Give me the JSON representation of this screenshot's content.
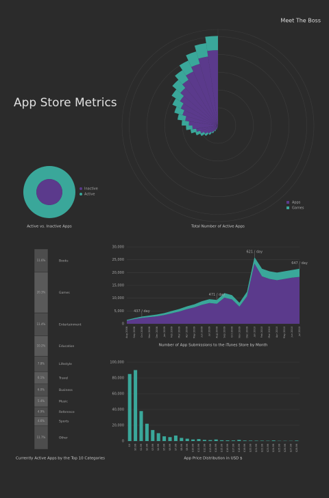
{
  "header": {
    "logo": "Meet The Boss",
    "title": "App Store Metrics"
  },
  "chart_data": [
    {
      "type": "polar_bar",
      "title": "Total Number of Active Apps",
      "series": [
        {
          "name": "Apps",
          "color": "#5b3a8c",
          "values": [
            2000,
            5000,
            9000,
            14000,
            20000,
            27000,
            35000,
            43000,
            52000,
            62000,
            72000,
            82000,
            93000,
            104000,
            115000,
            127000,
            140000,
            153000,
            167000,
            181000,
            196000,
            212000
          ]
        },
        {
          "name": "Games",
          "color": "#3aa79a",
          "values": [
            500,
            1200,
            2500,
            4000,
            6000,
            8000,
            10000,
            12000,
            14000,
            16000,
            18000,
            20000,
            22000,
            24000,
            26000,
            28000,
            30000,
            32000,
            34000,
            36000,
            38000,
            40000
          ]
        }
      ],
      "rlim": [
        0,
        270000
      ],
      "rticks": [
        50000,
        100000,
        150000,
        200000,
        250000
      ],
      "grid": true,
      "legend": "bottom-right"
    },
    {
      "type": "nested_circles",
      "title": "Active vs. Inactive Apps",
      "categories": [
        "Inactive",
        "Active"
      ],
      "values": [
        25,
        75
      ],
      "colors": [
        "#5b3a8c",
        "#3aa79a"
      ],
      "legend": "right"
    },
    {
      "type": "stacked_area",
      "title": "Number of App Submissions to the iTunes Store by Month",
      "categories": [
        "Aug 2008",
        "Sep 2008",
        "Oct 2008",
        "Nov 2008",
        "Dec 2008",
        "Jan 2009",
        "Feb 2009",
        "Mar 2009",
        "Apr 2009",
        "May 2009",
        "Jun 2009",
        "Jul 2009",
        "Aug 2009",
        "Sep 2009",
        "Oct 2009",
        "Nov 2009",
        "Dec 2009",
        "Jan 2010",
        "Feb 2010",
        "Mar 2010",
        "Apr 2010",
        "May 2010",
        "Jun 2010",
        "Jul 2010"
      ],
      "series": [
        {
          "name": "Apps",
          "color": "#5b3a8c",
          "values": [
            1200,
            1800,
            2300,
            2600,
            2900,
            3400,
            4100,
            4800,
            5700,
            6400,
            7400,
            8100,
            7800,
            10200,
            9500,
            6700,
            10700,
            23500,
            18500,
            17500,
            17000,
            17500,
            18000,
            18300
          ]
        },
        {
          "name": "Games",
          "color": "#3aa79a",
          "values": [
            300,
            400,
            500,
            600,
            700,
            800,
            900,
            1000,
            1100,
            1200,
            1400,
            1500,
            1500,
            1800,
            1700,
            1500,
            1800,
            2500,
            3000,
            3000,
            3000,
            3000,
            3000,
            3200
          ]
        }
      ],
      "ylim": [
        0,
        30000
      ],
      "yticks": [
        0,
        {
          "value": 5000,
          "label": "5,000"
        },
        {
          "value": 10000,
          "label": "10,000"
        },
        {
          "value": 15000,
          "label": "15,000"
        },
        {
          "value": 20000,
          "label": "20,000"
        },
        {
          "value": 25000,
          "label": "25,000"
        },
        {
          "value": 30000,
          "label": "30,000"
        }
      ],
      "annotations": [
        {
          "text": "437 / day",
          "x": "Oct 2008"
        },
        {
          "text": "471 / day",
          "x": "Aug 2009"
        },
        {
          "text": "621 / day",
          "x": "Jan 2010"
        },
        {
          "text": "647 / day",
          "x": "Jul 2010"
        }
      ]
    },
    {
      "type": "stacked_column",
      "title": "Currently Active Apps by the Top 10 Categories",
      "categories": [
        "Books",
        "Games",
        "Entertainment",
        "Education",
        "Lifestyle",
        "Travel",
        "Business",
        "Music",
        "Reference",
        "Sports",
        "Other"
      ],
      "values": [
        11.6,
        20.3,
        11.4,
        10.2,
        7.8,
        6.1,
        6.0,
        5.4,
        4.9,
        4.6,
        11.7
      ],
      "value_labels": [
        "11.6%",
        "20.3%",
        "11.4%",
        "10.2%",
        "7.8%",
        "6.1%",
        "6.0%",
        "5.4%",
        "4.9%",
        "4.6%",
        "11.7%"
      ],
      "colors": [
        "#4d4d4d",
        "#5a5a5a"
      ]
    },
    {
      "type": "histogram",
      "title": "App Price Distribution in USD $",
      "color": "#3aa79a",
      "categories": [
        "$0",
        "$0.99",
        "$1.99",
        "$2.99",
        "$3.99",
        "$4.99",
        "$5.99",
        "$6.99",
        "$7.99",
        "$8.99",
        "$9.99",
        "$10.99",
        "$11.99",
        "$12.99",
        "$13.99",
        "$14.99",
        "$15.99",
        "$16.99",
        "$17.99",
        "$18.99",
        "$19.99",
        "$20.99",
        "$21.99",
        "$22.99",
        "$23.99",
        "$24.99",
        "$25.99",
        "$26.99",
        "$27.99",
        "$28.99"
      ],
      "values": [
        85000,
        90000,
        38000,
        22000,
        14000,
        10000,
        6000,
        5000,
        7000,
        4000,
        3000,
        2000,
        2500,
        1500,
        1200,
        2000,
        1000,
        900,
        800,
        1500,
        700,
        600,
        500,
        500,
        400,
        800,
        300,
        300,
        300,
        600
      ],
      "ylim": [
        0,
        100000
      ],
      "yticks": [
        0,
        {
          "value": 20000,
          "label": "20,000"
        },
        {
          "value": 40000,
          "label": "40,000"
        },
        {
          "value": 60000,
          "label": "60,000"
        },
        {
          "value": 80000,
          "label": "80,000"
        },
        {
          "value": 100000,
          "label": "100,000"
        }
      ]
    }
  ]
}
